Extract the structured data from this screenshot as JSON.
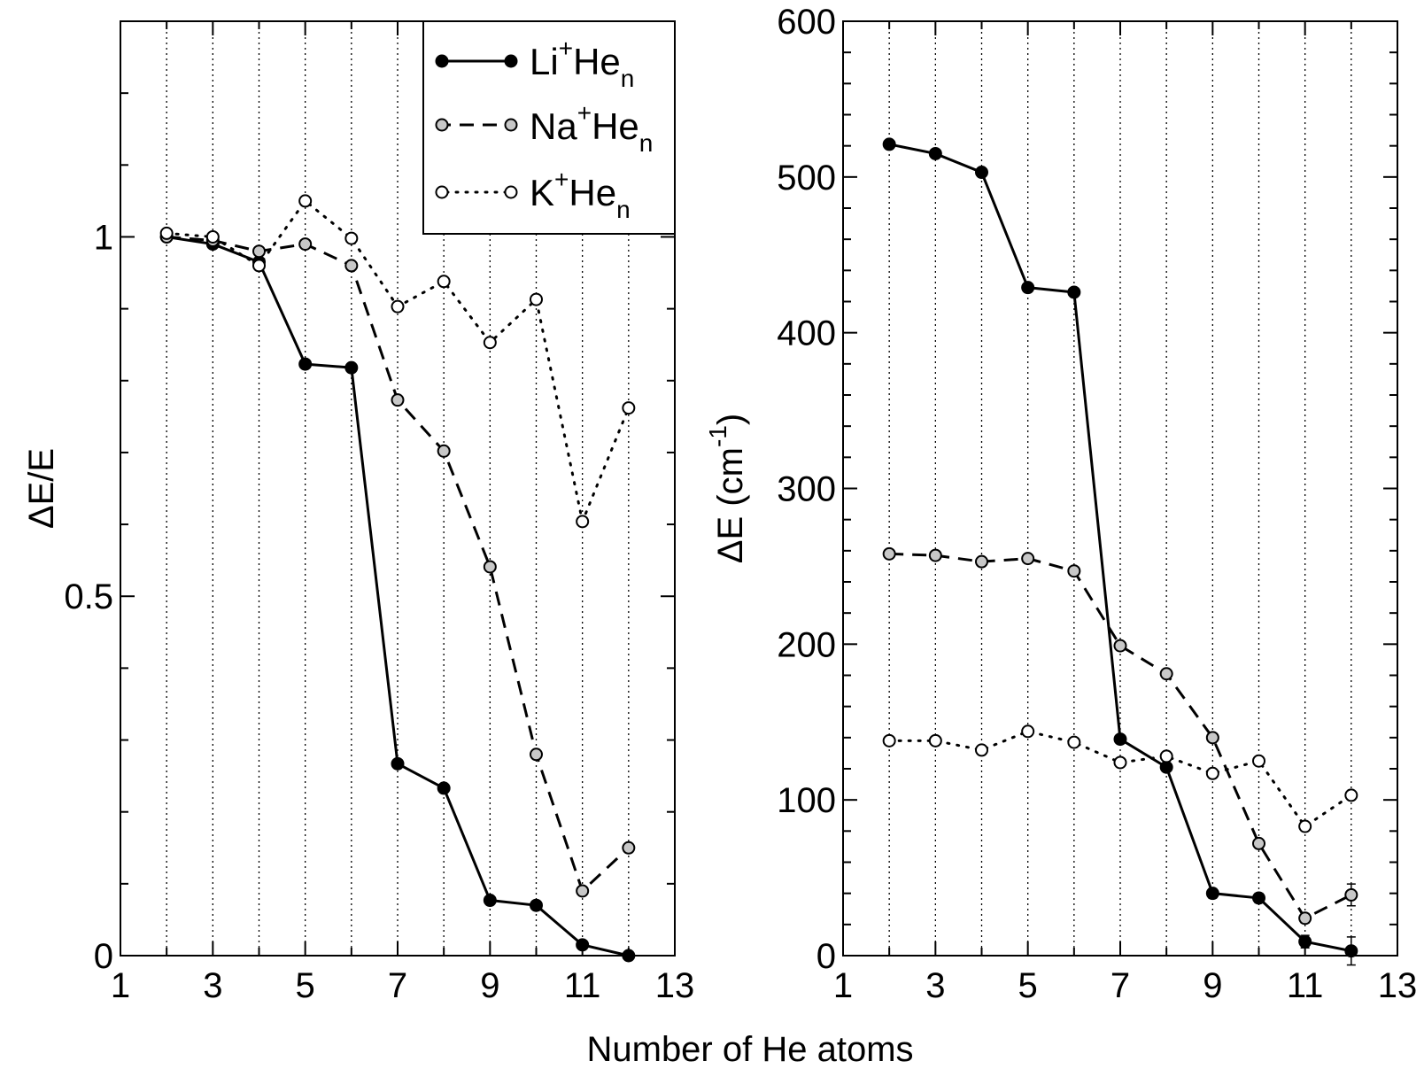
{
  "shared_xlabel": "Number of He atoms",
  "legend": [
    {
      "label": "Li",
      "sup": "+",
      "main": "He",
      "sub": "n"
    },
    {
      "label": "Na",
      "sup": "+",
      "main": "He",
      "sub": "n"
    },
    {
      "label": "K",
      "sup": "+",
      "main": "He",
      "sub": "n"
    }
  ],
  "chart_data": [
    {
      "type": "line",
      "title": "",
      "xlabel": "",
      "ylabel": "ΔE/E",
      "xlim": [
        1,
        13
      ],
      "ylim": [
        0,
        1.3
      ],
      "x_ticks": [
        1,
        3,
        5,
        7,
        9,
        11,
        13
      ],
      "y_ticks": [
        0,
        0.5,
        1
      ],
      "y_tick_labels": [
        "0",
        "0.5",
        "1"
      ],
      "y_minor_step": 0.1,
      "grid": "vertical dotted at integer x",
      "legend_position": "top-right",
      "x": [
        2,
        3,
        4,
        5,
        6,
        7,
        8,
        9,
        10,
        11,
        12
      ],
      "series": [
        {
          "name": "Li+Hen",
          "style": "solid",
          "marker": "filled-black",
          "values": [
            1.0,
            0.99,
            0.965,
            0.823,
            0.818,
            0.267,
            0.233,
            0.077,
            0.07,
            0.015,
            0.0
          ]
        },
        {
          "name": "Na+Hen",
          "style": "dashed",
          "marker": "filled-gray",
          "values": [
            1.0,
            0.995,
            0.98,
            0.99,
            0.96,
            0.773,
            0.702,
            0.541,
            0.28,
            0.09,
            0.15
          ]
        },
        {
          "name": "K+Hen",
          "style": "dotted",
          "marker": "open",
          "values": [
            1.005,
            1.0,
            0.96,
            1.05,
            0.998,
            0.903,
            0.938,
            0.853,
            0.913,
            0.604,
            0.762
          ]
        }
      ]
    },
    {
      "type": "line",
      "title": "",
      "xlabel": "",
      "ylabel": "ΔE (cm",
      "ylabel_sup": "-1",
      "ylabel_end": ")",
      "xlim": [
        1,
        13
      ],
      "ylim": [
        0,
        600
      ],
      "x_ticks": [
        1,
        3,
        5,
        7,
        9,
        11,
        13
      ],
      "y_ticks": [
        0,
        100,
        200,
        300,
        400,
        500,
        600
      ],
      "y_tick_labels": [
        "0",
        "100",
        "200",
        "300",
        "400",
        "500",
        "600"
      ],
      "y_minor_step": 20,
      "grid": "vertical dotted at integer x",
      "x": [
        2,
        3,
        4,
        5,
        6,
        7,
        8,
        9,
        10,
        11,
        12
      ],
      "series": [
        {
          "name": "Li+Hen",
          "style": "solid",
          "marker": "filled-black",
          "values": [
            521,
            515,
            503,
            429,
            426,
            139,
            121,
            40,
            37,
            9,
            3
          ],
          "errors": [
            0,
            0,
            0,
            0,
            0,
            0,
            0,
            3,
            3,
            4,
            9
          ]
        },
        {
          "name": "Na+Hen",
          "style": "dashed",
          "marker": "filled-gray",
          "values": [
            258,
            257,
            253,
            255,
            247,
            199,
            181,
            140,
            72,
            24,
            39
          ],
          "errors": [
            0,
            0,
            0,
            0,
            0,
            0,
            0,
            0,
            0,
            3,
            7
          ]
        },
        {
          "name": "K+Hen",
          "style": "dotted",
          "marker": "open",
          "values": [
            138,
            138,
            132,
            144,
            137,
            124,
            128,
            117,
            125,
            83,
            103
          ],
          "errors": [
            0,
            0,
            0,
            0,
            0,
            0,
            0,
            0,
            0,
            0,
            0
          ]
        }
      ]
    }
  ]
}
